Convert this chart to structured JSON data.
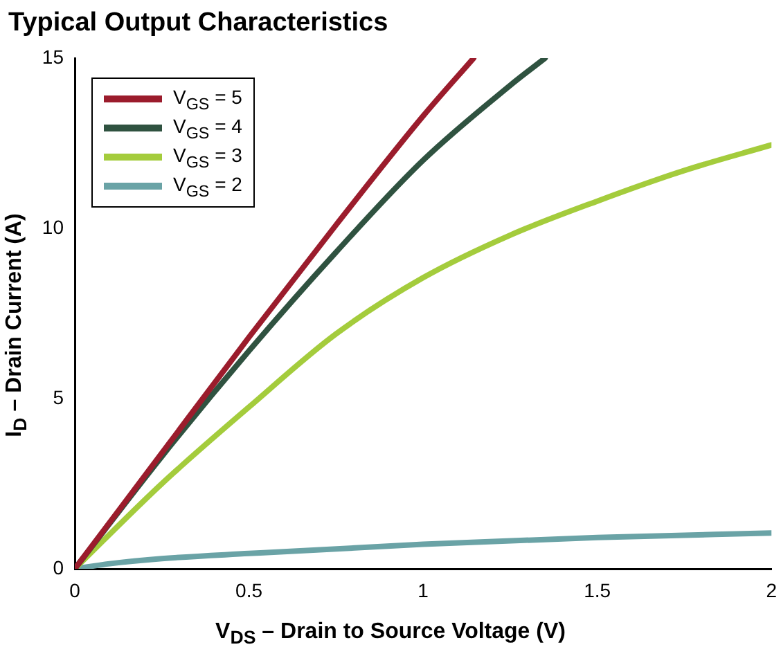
{
  "chart_data": {
    "type": "line",
    "title": "Typical Output Characteristics",
    "xlabel": "V$_{DS}$ – Drain to Source Voltage (V)",
    "ylabel": "I$_{D}$ – Drain Current (A)",
    "xlim": [
      0,
      2
    ],
    "xticks": [
      0,
      0.5,
      1,
      1.5,
      2
    ],
    "ylim": [
      0,
      15
    ],
    "yticks": [
      0,
      5,
      10,
      15
    ],
    "grid": false,
    "legend": "top left",
    "marker": "none",
    "line_style": "solid",
    "series": [
      {
        "name": "V$_{GS}$ = 5",
        "color": "#9b1c2c",
        "x": [
          0,
          0.25,
          0.5,
          0.75,
          1,
          1.145
        ],
        "values": [
          0,
          3.4,
          6.8,
          10.1,
          13.3,
          15
        ]
      },
      {
        "name": "V$_{GS}$ = 4",
        "color": "#2f5240",
        "x": [
          0,
          0.25,
          0.5,
          0.75,
          1,
          1.25,
          1.35
        ],
        "values": [
          0,
          3.3,
          6.4,
          9.3,
          12,
          14.2,
          15
        ]
      },
      {
        "name": "V$_{GS}$ = 3",
        "color": "#a4cc3c",
        "x": [
          0,
          0.25,
          0.5,
          0.75,
          1,
          1.25,
          1.5,
          1.75,
          2
        ],
        "values": [
          0,
          2.5,
          4.75,
          6.9,
          8.55,
          9.8,
          10.8,
          11.7,
          12.45
        ]
      },
      {
        "name": "V$_{GS}$ = 2",
        "color": "#6aa3a6",
        "x": [
          0,
          0.1,
          0.25,
          0.5,
          1,
          1.5,
          2
        ],
        "values": [
          0,
          0.15,
          0.3,
          0.45,
          0.72,
          0.92,
          1.05
        ]
      }
    ]
  }
}
